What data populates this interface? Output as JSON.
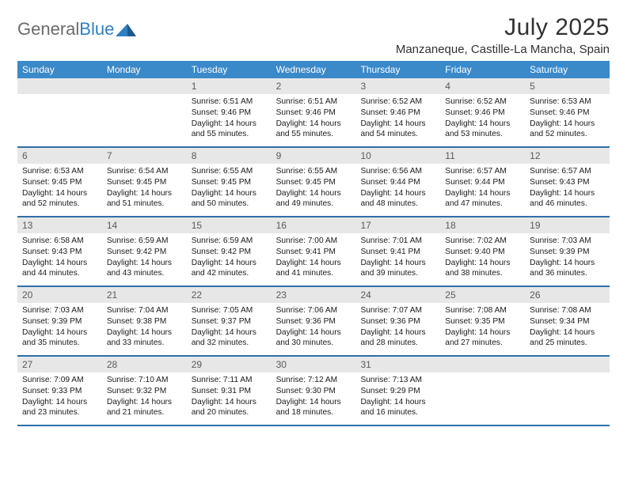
{
  "logo": {
    "textGray": "General",
    "textBlue": "Blue"
  },
  "title": "July 2025",
  "location": "Manzaneque, Castille-La Mancha, Spain",
  "colors": {
    "headerBar": "#3a89c9",
    "rowBorder": "#2f6fa8",
    "dayNumBg": "#e7e7e7",
    "dayNumText": "#5a5a5a",
    "background": "#ffffff",
    "logoGray": "#6b6b6b",
    "logoBlue": "#2f7fc2"
  },
  "weekdays": [
    "Sunday",
    "Monday",
    "Tuesday",
    "Wednesday",
    "Thursday",
    "Friday",
    "Saturday"
  ],
  "weeks": [
    [
      null,
      null,
      {
        "n": "1",
        "sr": "6:51 AM",
        "ss": "9:46 PM",
        "dl": "14 hours and 55 minutes."
      },
      {
        "n": "2",
        "sr": "6:51 AM",
        "ss": "9:46 PM",
        "dl": "14 hours and 55 minutes."
      },
      {
        "n": "3",
        "sr": "6:52 AM",
        "ss": "9:46 PM",
        "dl": "14 hours and 54 minutes."
      },
      {
        "n": "4",
        "sr": "6:52 AM",
        "ss": "9:46 PM",
        "dl": "14 hours and 53 minutes."
      },
      {
        "n": "5",
        "sr": "6:53 AM",
        "ss": "9:46 PM",
        "dl": "14 hours and 52 minutes."
      }
    ],
    [
      {
        "n": "6",
        "sr": "6:53 AM",
        "ss": "9:45 PM",
        "dl": "14 hours and 52 minutes."
      },
      {
        "n": "7",
        "sr": "6:54 AM",
        "ss": "9:45 PM",
        "dl": "14 hours and 51 minutes."
      },
      {
        "n": "8",
        "sr": "6:55 AM",
        "ss": "9:45 PM",
        "dl": "14 hours and 50 minutes."
      },
      {
        "n": "9",
        "sr": "6:55 AM",
        "ss": "9:45 PM",
        "dl": "14 hours and 49 minutes."
      },
      {
        "n": "10",
        "sr": "6:56 AM",
        "ss": "9:44 PM",
        "dl": "14 hours and 48 minutes."
      },
      {
        "n": "11",
        "sr": "6:57 AM",
        "ss": "9:44 PM",
        "dl": "14 hours and 47 minutes."
      },
      {
        "n": "12",
        "sr": "6:57 AM",
        "ss": "9:43 PM",
        "dl": "14 hours and 46 minutes."
      }
    ],
    [
      {
        "n": "13",
        "sr": "6:58 AM",
        "ss": "9:43 PM",
        "dl": "14 hours and 44 minutes."
      },
      {
        "n": "14",
        "sr": "6:59 AM",
        "ss": "9:42 PM",
        "dl": "14 hours and 43 minutes."
      },
      {
        "n": "15",
        "sr": "6:59 AM",
        "ss": "9:42 PM",
        "dl": "14 hours and 42 minutes."
      },
      {
        "n": "16",
        "sr": "7:00 AM",
        "ss": "9:41 PM",
        "dl": "14 hours and 41 minutes."
      },
      {
        "n": "17",
        "sr": "7:01 AM",
        "ss": "9:41 PM",
        "dl": "14 hours and 39 minutes."
      },
      {
        "n": "18",
        "sr": "7:02 AM",
        "ss": "9:40 PM",
        "dl": "14 hours and 38 minutes."
      },
      {
        "n": "19",
        "sr": "7:03 AM",
        "ss": "9:39 PM",
        "dl": "14 hours and 36 minutes."
      }
    ],
    [
      {
        "n": "20",
        "sr": "7:03 AM",
        "ss": "9:39 PM",
        "dl": "14 hours and 35 minutes."
      },
      {
        "n": "21",
        "sr": "7:04 AM",
        "ss": "9:38 PM",
        "dl": "14 hours and 33 minutes."
      },
      {
        "n": "22",
        "sr": "7:05 AM",
        "ss": "9:37 PM",
        "dl": "14 hours and 32 minutes."
      },
      {
        "n": "23",
        "sr": "7:06 AM",
        "ss": "9:36 PM",
        "dl": "14 hours and 30 minutes."
      },
      {
        "n": "24",
        "sr": "7:07 AM",
        "ss": "9:36 PM",
        "dl": "14 hours and 28 minutes."
      },
      {
        "n": "25",
        "sr": "7:08 AM",
        "ss": "9:35 PM",
        "dl": "14 hours and 27 minutes."
      },
      {
        "n": "26",
        "sr": "7:08 AM",
        "ss": "9:34 PM",
        "dl": "14 hours and 25 minutes."
      }
    ],
    [
      {
        "n": "27",
        "sr": "7:09 AM",
        "ss": "9:33 PM",
        "dl": "14 hours and 23 minutes."
      },
      {
        "n": "28",
        "sr": "7:10 AM",
        "ss": "9:32 PM",
        "dl": "14 hours and 21 minutes."
      },
      {
        "n": "29",
        "sr": "7:11 AM",
        "ss": "9:31 PM",
        "dl": "14 hours and 20 minutes."
      },
      {
        "n": "30",
        "sr": "7:12 AM",
        "ss": "9:30 PM",
        "dl": "14 hours and 18 minutes."
      },
      {
        "n": "31",
        "sr": "7:13 AM",
        "ss": "9:29 PM",
        "dl": "14 hours and 16 minutes."
      },
      null,
      null
    ]
  ],
  "labels": {
    "sunrise": "Sunrise:",
    "sunset": "Sunset:",
    "daylight": "Daylight:"
  }
}
